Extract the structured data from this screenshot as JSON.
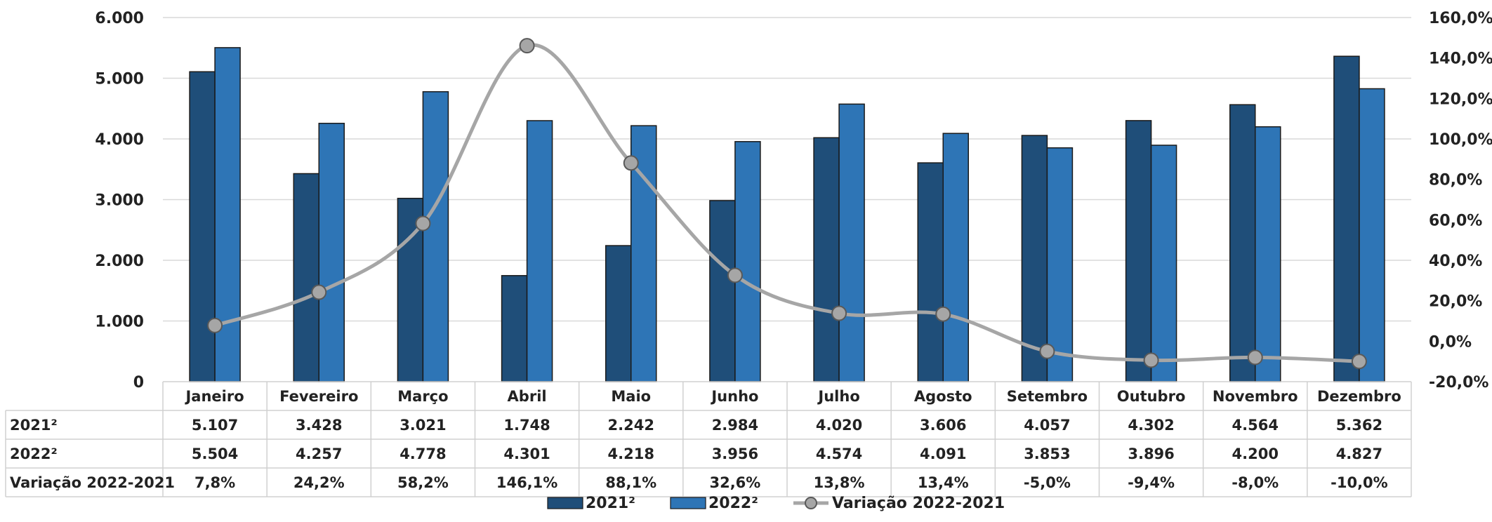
{
  "chart_data": {
    "type": "bar",
    "title": "",
    "categories": [
      "Janeiro",
      "Fevereiro",
      "Março",
      "Abril",
      "Maio",
      "Junho",
      "Julho",
      "Agosto",
      "Setembro",
      "Outubro",
      "Novembro",
      "Dezembro"
    ],
    "series": [
      {
        "name": "2021²",
        "type": "bar",
        "axis": "left",
        "color": "#1f4e79",
        "values": [
          5107,
          3428,
          3021,
          1748,
          2242,
          2984,
          4020,
          3606,
          4057,
          4302,
          4564,
          5362
        ],
        "labels": [
          "5.107",
          "3.428",
          "3.021",
          "1.748",
          "2.242",
          "2.984",
          "4.020",
          "3.606",
          "4.057",
          "4.302",
          "4.564",
          "5.362"
        ]
      },
      {
        "name": "2022²",
        "type": "bar",
        "axis": "left",
        "color": "#2e75b6",
        "values": [
          5504,
          4257,
          4778,
          4301,
          4218,
          3956,
          4574,
          4091,
          3853,
          3896,
          4200,
          4827
        ],
        "labels": [
          "5.504",
          "4.257",
          "4.778",
          "4.301",
          "4.218",
          "3.956",
          "4.574",
          "4.091",
          "3.853",
          "3.896",
          "4.200",
          "4.827"
        ]
      },
      {
        "name": "Variação 2022-2021",
        "type": "line",
        "axis": "right",
        "color": "#a6a6a6",
        "marker_color": "#a6a6a6",
        "values": [
          7.8,
          24.2,
          58.2,
          146.1,
          88.1,
          32.6,
          13.8,
          13.4,
          -5.0,
          -9.4,
          -8.0,
          -10.0
        ],
        "labels": [
          "7,8%",
          "24,2%",
          "58,2%",
          "146,1%",
          "88,1%",
          "32,6%",
          "13,8%",
          "13,4%",
          "-5,0%",
          "-9,4%",
          "-8,0%",
          "-10,0%"
        ]
      }
    ],
    "ylim": [
      0,
      6000
    ],
    "yticks": [
      0,
      1000,
      2000,
      3000,
      4000,
      5000,
      6000
    ],
    "ytick_labels": [
      "0",
      "1.000",
      "2.000",
      "3.000",
      "4.000",
      "5.000",
      "6.000"
    ],
    "y2lim": [
      -20,
      160
    ],
    "y2ticks": [
      -20,
      0,
      20,
      40,
      60,
      80,
      100,
      120,
      140,
      160
    ],
    "y2tick_labels": [
      "-20,0%",
      "0,0%",
      "20,0%",
      "40,0%",
      "60,0%",
      "80,0%",
      "100,0%",
      "120,0%",
      "140,0%",
      "160,0%"
    ],
    "grid": true,
    "data_table": true,
    "legend_position": "bottom-center"
  }
}
